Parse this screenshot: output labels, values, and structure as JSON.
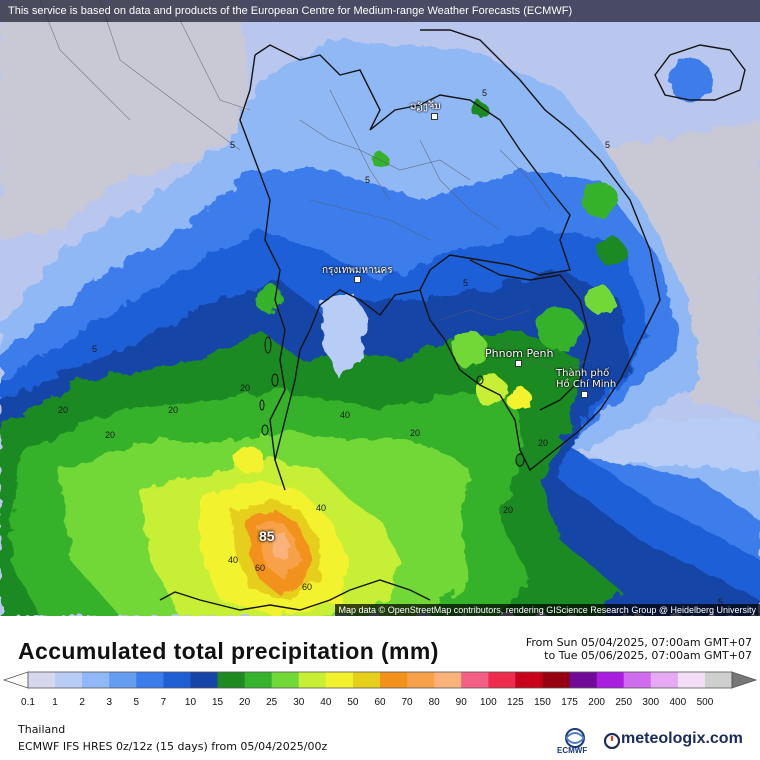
{
  "banner": {
    "text": "This service is based on data and products of the European Centre for Medium-range Weather Forecasts (ECMWF)"
  },
  "map": {
    "attribution": "Map data © OpenStreetMap contributors, rendering GIScience Research Group @ Heidelberg University",
    "cities": [
      {
        "name": "Phnom Penh",
        "script": "latin"
      },
      {
        "name": "Thành phố\nHồ Chí Minh",
        "script": "latin"
      },
      {
        "name": "กรุงเทพมหานคร",
        "script": "thai"
      },
      {
        "name": "ວຽງຈັນ",
        "script": "lao"
      }
    ],
    "max_value": "85",
    "contour_values": [
      "5",
      "20",
      "40",
      "60"
    ]
  },
  "legend": {
    "title": "Accumulated total precipitation (mm)",
    "from_text": "From Sun 05/04/2025, 07:00am GMT+07",
    "to_text": "to Tue 05/06/2025, 07:00am GMT+07",
    "unit": "mm",
    "scale": [
      {
        "value": "0.1",
        "color": "#d6d6ec"
      },
      {
        "value": "1",
        "color": "#b7cdf6"
      },
      {
        "value": "2",
        "color": "#90b8f4"
      },
      {
        "value": "3",
        "color": "#649cf0"
      },
      {
        "value": "5",
        "color": "#3d7deb"
      },
      {
        "value": "7",
        "color": "#1f5fd6"
      },
      {
        "value": "10",
        "color": "#1844a8"
      },
      {
        "value": "15",
        "color": "#1f8a22"
      },
      {
        "value": "20",
        "color": "#36b22c"
      },
      {
        "value": "25",
        "color": "#72d838"
      },
      {
        "value": "30",
        "color": "#c6ef35"
      },
      {
        "value": "40",
        "color": "#f2f22e"
      },
      {
        "value": "50",
        "color": "#e5cf1d"
      },
      {
        "value": "60",
        "color": "#f2921a"
      },
      {
        "value": "70",
        "color": "#f7a14a"
      },
      {
        "value": "80",
        "color": "#f9b27a"
      },
      {
        "value": "90",
        "color": "#f45f86"
      },
      {
        "value": "100",
        "color": "#ee2c4e"
      },
      {
        "value": "125",
        "color": "#c9001c"
      },
      {
        "value": "150",
        "color": "#950012"
      },
      {
        "value": "175",
        "color": "#720a98"
      },
      {
        "value": "200",
        "color": "#a81fe0"
      },
      {
        "value": "250",
        "color": "#cf6bee"
      },
      {
        "value": "300",
        "color": "#e6a9f4"
      },
      {
        "value": "400",
        "color": "#f4def7"
      },
      {
        "value": "500",
        "color": "#cfcfcf"
      }
    ]
  },
  "footer": {
    "region": "Thailand",
    "model_text": "ECMWF IFS HRES 0z/12z (15 days) from 05/04/2025/00z",
    "ecmwf_logo_text": "ECMWF",
    "meteologix_text": "meteologix.com"
  },
  "colors": {
    "sea_base": "#2f66d8",
    "land_base": "#c4c4d4",
    "border": "#141414"
  }
}
